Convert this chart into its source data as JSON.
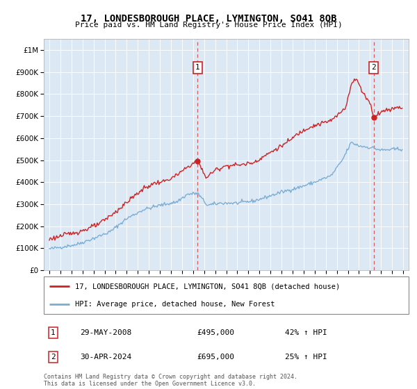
{
  "title": "17, LONDESBOROUGH PLACE, LYMINGTON, SO41 8QB",
  "subtitle": "Price paid vs. HM Land Registry's House Price Index (HPI)",
  "hpi_label": "HPI: Average price, detached house, New Forest",
  "price_label": "17, LONDESBOROUGH PLACE, LYMINGTON, SO41 8QB (detached house)",
  "sale1_date": "29-MAY-2008",
  "sale1_price": 495000,
  "sale1_pct": "42% ↑ HPI",
  "sale2_date": "30-APR-2024",
  "sale2_price": 695000,
  "sale2_pct": "25% ↑ HPI",
  "footer": "Contains HM Land Registry data © Crown copyright and database right 2024.\nThis data is licensed under the Open Government Licence v3.0.",
  "hpi_color": "#7aadd4",
  "price_color": "#cc2222",
  "dashed_color": "#cc4444",
  "background_color": "#ffffff",
  "chart_bg_color": "#dce9f5",
  "grid_color": "#ffffff",
  "ylim": [
    0,
    1050000
  ],
  "yticks": [
    0,
    100000,
    200000,
    300000,
    400000,
    500000,
    600000,
    700000,
    800000,
    900000,
    1000000
  ],
  "xlim_start": 1994.5,
  "xlim_end": 2027.5,
  "xticks": [
    1995,
    1996,
    1997,
    1998,
    1999,
    2000,
    2001,
    2002,
    2003,
    2004,
    2005,
    2006,
    2007,
    2008,
    2009,
    2010,
    2011,
    2012,
    2013,
    2014,
    2015,
    2016,
    2017,
    2018,
    2019,
    2020,
    2021,
    2022,
    2023,
    2024,
    2025,
    2026,
    2027
  ],
  "sale1_x": 2008.41,
  "sale2_x": 2024.33
}
